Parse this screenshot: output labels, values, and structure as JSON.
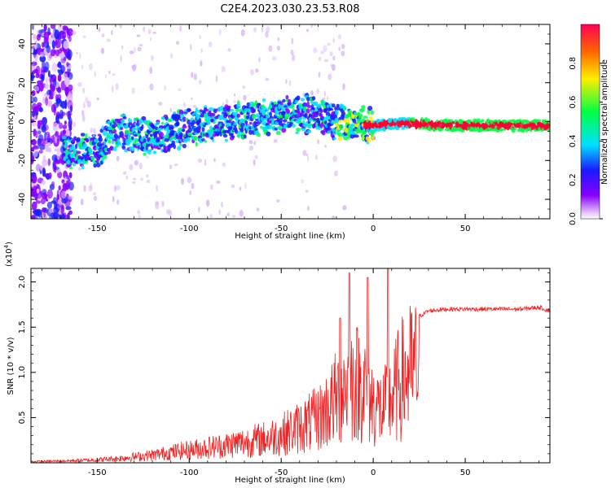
{
  "title": "C2E4.2023.030.23.53.R08",
  "chart_data": [
    {
      "type": "heatmap",
      "xlabel": "Height of straight line (km)",
      "ylabel": "Frequency (Hz)",
      "xlim": [
        -186,
        96
      ],
      "ylim": [
        -50,
        50
      ],
      "xticks": [
        -150,
        -100,
        -50,
        0,
        50
      ],
      "xtick_labels": [
        "-150",
        "-100",
        "-50",
        "0",
        "50"
      ],
      "yticks": [
        -40,
        -20,
        0,
        20,
        40
      ],
      "ytick_labels": [
        "-40",
        "-20",
        "0",
        "20",
        "40"
      ],
      "colorbar": {
        "label": "Normalized spectral amplitude",
        "range": [
          0,
          1
        ],
        "ticks": [
          0.0,
          0.2,
          0.4,
          0.6,
          0.8
        ],
        "tick_labels": [
          "0.0",
          "0.2",
          "0.4",
          "0.6",
          "0.8"
        ],
        "colors": [
          "#ffffff",
          "#e0b8f8",
          "#8a00ff",
          "#1a1aff",
          "#00e0ff",
          "#00ff44",
          "#ffee00",
          "#ff6600",
          "#ff0033"
        ]
      },
      "ridge": {
        "description_points_x": [
          -170,
          -150,
          -140,
          -120,
          -100,
          -80,
          -60,
          -40,
          -30,
          -20,
          -10,
          0,
          10,
          20,
          40,
          60,
          96
        ],
        "description_points_y": [
          -16,
          -14,
          -5,
          -8,
          -3,
          0,
          2,
          4,
          3,
          0,
          -1,
          -2,
          -1,
          -1,
          -2,
          -2,
          -2
        ]
      }
    },
    {
      "type": "line",
      "xlabel": "Height of straight line (km)",
      "ylabel": "SNR (10 * v/v)",
      "y_multiplier": "(x10",
      "y_multiplier_exp": "4",
      "y_multiplier_close": ")",
      "xlim": [
        -186,
        96
      ],
      "ylim": [
        0,
        2.15
      ],
      "xticks": [
        -150,
        -100,
        -50,
        0,
        50
      ],
      "xtick_labels": [
        "-150",
        "-100",
        "-50",
        "0",
        "50"
      ],
      "yticks": [
        0.5,
        1.0,
        1.5,
        2.0
      ],
      "ytick_labels": [
        "0.5",
        "1.0",
        "1.5",
        "2.0"
      ],
      "series": [
        {
          "name": "SNR",
          "color": "#ee2222",
          "envelope_x": [
            -186,
            -170,
            -150,
            -140,
            -130,
            -120,
            -110,
            -100,
            -90,
            -80,
            -70,
            -60,
            -50,
            -40,
            -30,
            -25,
            -20,
            -15,
            -10,
            -5,
            0,
            5,
            8,
            12,
            15,
            20,
            25,
            30,
            40,
            60,
            80,
            90,
            96
          ],
          "envelope_y": [
            0.02,
            0.03,
            0.05,
            0.07,
            0.1,
            0.13,
            0.18,
            0.22,
            0.26,
            0.3,
            0.35,
            0.4,
            0.48,
            0.6,
            0.75,
            0.9,
            1.1,
            1.3,
            1.4,
            1.3,
            1.0,
            0.9,
            1.0,
            1.2,
            1.4,
            1.55,
            1.62,
            1.68,
            1.7,
            1.7,
            1.7,
            1.72,
            1.68
          ],
          "peaks": [
            {
              "x": -13,
              "y": 2.1
            },
            {
              "x": 8,
              "y": 2.15
            },
            {
              "x": -3,
              "y": 2.05
            },
            {
              "x": -18,
              "y": 1.6
            }
          ]
        }
      ]
    }
  ]
}
